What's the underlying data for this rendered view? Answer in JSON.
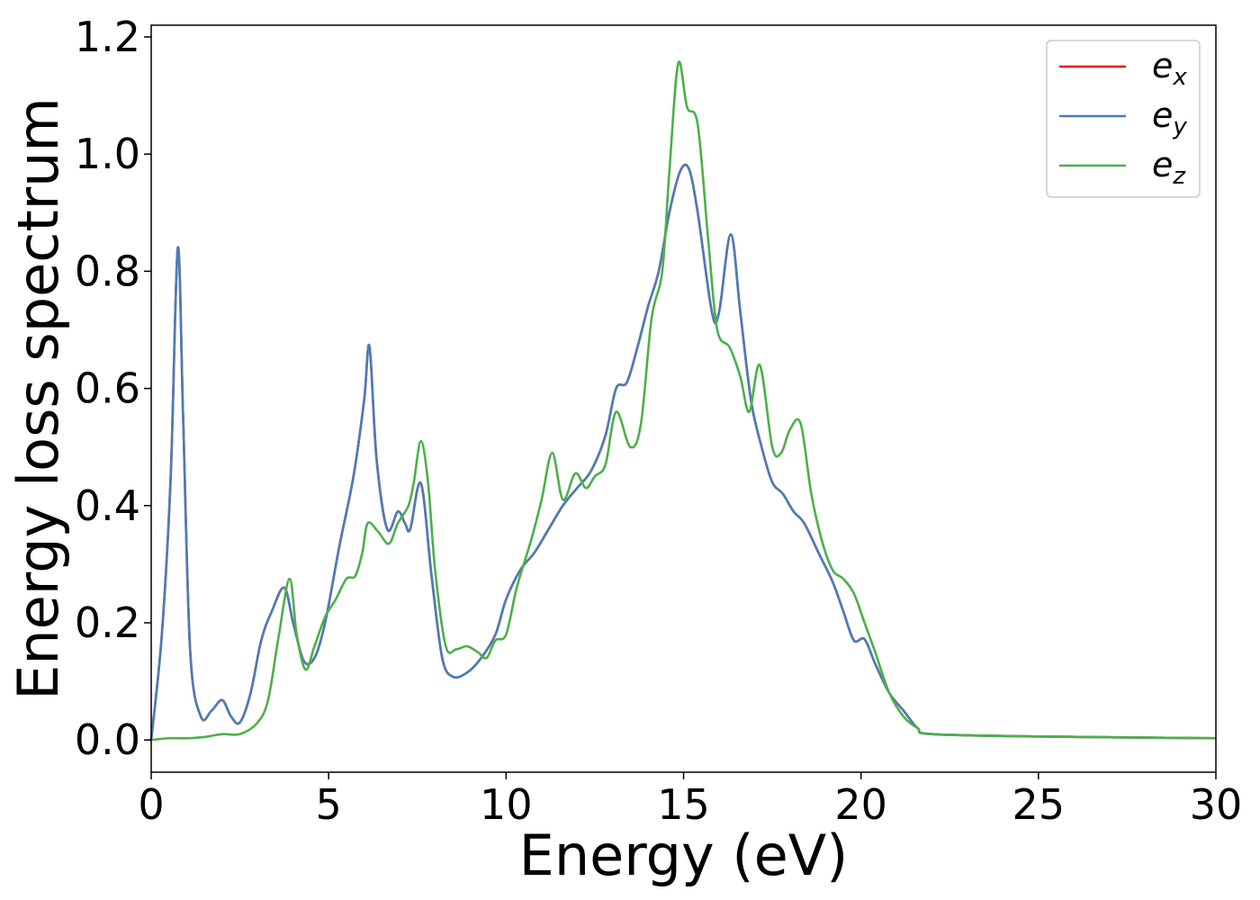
{
  "chart_data": {
    "type": "line",
    "xlabel": "Energy (eV)",
    "ylabel": "Energy loss spectrum",
    "xlim": [
      0,
      30
    ],
    "ylim": [
      -0.055,
      1.22
    ],
    "xticks": [
      0,
      5,
      10,
      15,
      20,
      25,
      30
    ],
    "yticks": [
      0.0,
      0.2,
      0.4,
      0.6,
      0.8,
      1.0,
      1.2
    ],
    "xtick_labels": [
      "0",
      "5",
      "10",
      "15",
      "20",
      "25",
      "30"
    ],
    "ytick_labels": [
      "0.0",
      "0.2",
      "0.4",
      "0.6",
      "0.8",
      "1.0",
      "1.2"
    ],
    "grid": false,
    "legend_position": "top-right",
    "series": [
      {
        "name": "e_x",
        "legend_base": "e",
        "legend_sub": "x",
        "color": "#e41a1c",
        "points": [
          [
            0,
            0
          ],
          [
            0.3,
            0.18
          ],
          [
            0.55,
            0.45
          ],
          [
            0.75,
            0.84
          ],
          [
            0.9,
            0.55
          ],
          [
            1.1,
            0.15
          ],
          [
            1.4,
            0.04
          ],
          [
            1.7,
            0.05
          ],
          [
            2.0,
            0.068
          ],
          [
            2.25,
            0.04
          ],
          [
            2.5,
            0.03
          ],
          [
            2.8,
            0.08
          ],
          [
            3.1,
            0.17
          ],
          [
            3.4,
            0.22
          ],
          [
            3.75,
            0.26
          ],
          [
            4.0,
            0.2
          ],
          [
            4.3,
            0.135
          ],
          [
            4.6,
            0.14
          ],
          [
            4.9,
            0.2
          ],
          [
            5.3,
            0.33
          ],
          [
            5.7,
            0.45
          ],
          [
            6.0,
            0.58
          ],
          [
            6.15,
            0.672
          ],
          [
            6.35,
            0.48
          ],
          [
            6.65,
            0.36
          ],
          [
            6.95,
            0.39
          ],
          [
            7.15,
            0.37
          ],
          [
            7.3,
            0.36
          ],
          [
            7.6,
            0.438
          ],
          [
            7.9,
            0.28
          ],
          [
            8.2,
            0.14
          ],
          [
            8.5,
            0.108
          ],
          [
            8.9,
            0.115
          ],
          [
            9.3,
            0.14
          ],
          [
            9.7,
            0.18
          ],
          [
            10.0,
            0.24
          ],
          [
            10.4,
            0.29
          ],
          [
            10.8,
            0.32
          ],
          [
            11.2,
            0.36
          ],
          [
            11.6,
            0.4
          ],
          [
            12.0,
            0.43
          ],
          [
            12.4,
            0.46
          ],
          [
            12.8,
            0.52
          ],
          [
            13.1,
            0.6
          ],
          [
            13.4,
            0.61
          ],
          [
            13.7,
            0.67
          ],
          [
            14.0,
            0.74
          ],
          [
            14.3,
            0.8
          ],
          [
            14.6,
            0.9
          ],
          [
            14.9,
            0.97
          ],
          [
            15.15,
            0.975
          ],
          [
            15.4,
            0.9
          ],
          [
            15.8,
            0.73
          ],
          [
            16.0,
            0.73
          ],
          [
            16.33,
            0.863
          ],
          [
            16.6,
            0.73
          ],
          [
            16.9,
            0.58
          ],
          [
            17.2,
            0.5
          ],
          [
            17.5,
            0.44
          ],
          [
            17.8,
            0.42
          ],
          [
            18.1,
            0.39
          ],
          [
            18.4,
            0.37
          ],
          [
            18.8,
            0.32
          ],
          [
            19.2,
            0.27
          ],
          [
            19.5,
            0.22
          ],
          [
            19.8,
            0.17
          ],
          [
            20.1,
            0.172
          ],
          [
            20.4,
            0.13
          ],
          [
            20.8,
            0.08
          ],
          [
            21.2,
            0.05
          ],
          [
            21.6,
            0.02
          ],
          [
            22.0,
            0.01
          ],
          [
            25,
            0.006
          ],
          [
            30,
            0.003
          ]
        ]
      },
      {
        "name": "e_y",
        "legend_base": "e",
        "legend_sub": "y",
        "color": "#4a7db8",
        "points": [
          [
            0,
            0
          ],
          [
            0.3,
            0.18
          ],
          [
            0.55,
            0.45
          ],
          [
            0.75,
            0.84
          ],
          [
            0.9,
            0.55
          ],
          [
            1.1,
            0.15
          ],
          [
            1.4,
            0.04
          ],
          [
            1.7,
            0.05
          ],
          [
            2.0,
            0.068
          ],
          [
            2.25,
            0.04
          ],
          [
            2.5,
            0.03
          ],
          [
            2.8,
            0.08
          ],
          [
            3.1,
            0.17
          ],
          [
            3.4,
            0.22
          ],
          [
            3.75,
            0.26
          ],
          [
            4.0,
            0.2
          ],
          [
            4.3,
            0.135
          ],
          [
            4.6,
            0.14
          ],
          [
            4.9,
            0.2
          ],
          [
            5.3,
            0.33
          ],
          [
            5.7,
            0.45
          ],
          [
            6.0,
            0.58
          ],
          [
            6.15,
            0.672
          ],
          [
            6.35,
            0.48
          ],
          [
            6.65,
            0.36
          ],
          [
            6.95,
            0.39
          ],
          [
            7.15,
            0.37
          ],
          [
            7.3,
            0.36
          ],
          [
            7.6,
            0.438
          ],
          [
            7.9,
            0.28
          ],
          [
            8.2,
            0.14
          ],
          [
            8.5,
            0.108
          ],
          [
            8.9,
            0.115
          ],
          [
            9.3,
            0.14
          ],
          [
            9.7,
            0.18
          ],
          [
            10.0,
            0.24
          ],
          [
            10.4,
            0.29
          ],
          [
            10.8,
            0.32
          ],
          [
            11.2,
            0.36
          ],
          [
            11.6,
            0.4
          ],
          [
            12.0,
            0.43
          ],
          [
            12.4,
            0.46
          ],
          [
            12.8,
            0.52
          ],
          [
            13.1,
            0.6
          ],
          [
            13.4,
            0.61
          ],
          [
            13.7,
            0.67
          ],
          [
            14.0,
            0.74
          ],
          [
            14.3,
            0.8
          ],
          [
            14.6,
            0.9
          ],
          [
            14.9,
            0.97
          ],
          [
            15.15,
            0.975
          ],
          [
            15.4,
            0.9
          ],
          [
            15.8,
            0.73
          ],
          [
            16.0,
            0.73
          ],
          [
            16.33,
            0.863
          ],
          [
            16.6,
            0.73
          ],
          [
            16.9,
            0.58
          ],
          [
            17.2,
            0.5
          ],
          [
            17.5,
            0.44
          ],
          [
            17.8,
            0.42
          ],
          [
            18.1,
            0.39
          ],
          [
            18.4,
            0.37
          ],
          [
            18.8,
            0.32
          ],
          [
            19.2,
            0.27
          ],
          [
            19.5,
            0.22
          ],
          [
            19.8,
            0.17
          ],
          [
            20.1,
            0.172
          ],
          [
            20.4,
            0.13
          ],
          [
            20.8,
            0.08
          ],
          [
            21.2,
            0.05
          ],
          [
            21.6,
            0.02
          ],
          [
            22.0,
            0.01
          ],
          [
            25,
            0.006
          ],
          [
            30,
            0.003
          ]
        ]
      },
      {
        "name": "e_z",
        "legend_base": "e",
        "legend_sub": "z",
        "color": "#4daf4a",
        "points": [
          [
            0,
            0
          ],
          [
            0.5,
            0.003
          ],
          [
            1.0,
            0.003
          ],
          [
            1.5,
            0.005
          ],
          [
            2.0,
            0.01
          ],
          [
            2.5,
            0.01
          ],
          [
            3.0,
            0.03
          ],
          [
            3.3,
            0.07
          ],
          [
            3.6,
            0.18
          ],
          [
            3.9,
            0.275
          ],
          [
            4.1,
            0.18
          ],
          [
            4.35,
            0.12
          ],
          [
            4.6,
            0.16
          ],
          [
            4.9,
            0.21
          ],
          [
            5.2,
            0.24
          ],
          [
            5.5,
            0.275
          ],
          [
            5.75,
            0.28
          ],
          [
            5.95,
            0.32
          ],
          [
            6.1,
            0.37
          ],
          [
            6.4,
            0.355
          ],
          [
            6.7,
            0.335
          ],
          [
            6.95,
            0.37
          ],
          [
            7.25,
            0.4
          ],
          [
            7.4,
            0.44
          ],
          [
            7.6,
            0.51
          ],
          [
            7.8,
            0.44
          ],
          [
            8.0,
            0.29
          ],
          [
            8.3,
            0.16
          ],
          [
            8.6,
            0.155
          ],
          [
            8.9,
            0.16
          ],
          [
            9.2,
            0.15
          ],
          [
            9.45,
            0.14
          ],
          [
            9.7,
            0.17
          ],
          [
            10.0,
            0.18
          ],
          [
            10.3,
            0.26
          ],
          [
            10.7,
            0.34
          ],
          [
            11.0,
            0.41
          ],
          [
            11.3,
            0.49
          ],
          [
            11.6,
            0.41
          ],
          [
            11.95,
            0.455
          ],
          [
            12.25,
            0.43
          ],
          [
            12.5,
            0.45
          ],
          [
            12.8,
            0.47
          ],
          [
            13.1,
            0.56
          ],
          [
            13.5,
            0.5
          ],
          [
            13.8,
            0.54
          ],
          [
            14.1,
            0.72
          ],
          [
            14.4,
            0.8
          ],
          [
            14.6,
            0.97
          ],
          [
            14.85,
            1.155
          ],
          [
            15.1,
            1.08
          ],
          [
            15.4,
            1.05
          ],
          [
            15.7,
            0.85
          ],
          [
            15.95,
            0.7
          ],
          [
            16.3,
            0.67
          ],
          [
            16.6,
            0.62
          ],
          [
            16.85,
            0.56
          ],
          [
            17.15,
            0.64
          ],
          [
            17.5,
            0.5
          ],
          [
            17.75,
            0.49
          ],
          [
            18.0,
            0.53
          ],
          [
            18.3,
            0.54
          ],
          [
            18.6,
            0.42
          ],
          [
            18.9,
            0.34
          ],
          [
            19.2,
            0.29
          ],
          [
            19.5,
            0.275
          ],
          [
            19.8,
            0.25
          ],
          [
            20.1,
            0.2
          ],
          [
            20.4,
            0.15
          ],
          [
            20.8,
            0.08
          ],
          [
            21.2,
            0.04
          ],
          [
            21.6,
            0.02
          ],
          [
            22.0,
            0.01
          ],
          [
            25,
            0.006
          ],
          [
            30,
            0.003
          ]
        ]
      }
    ]
  }
}
